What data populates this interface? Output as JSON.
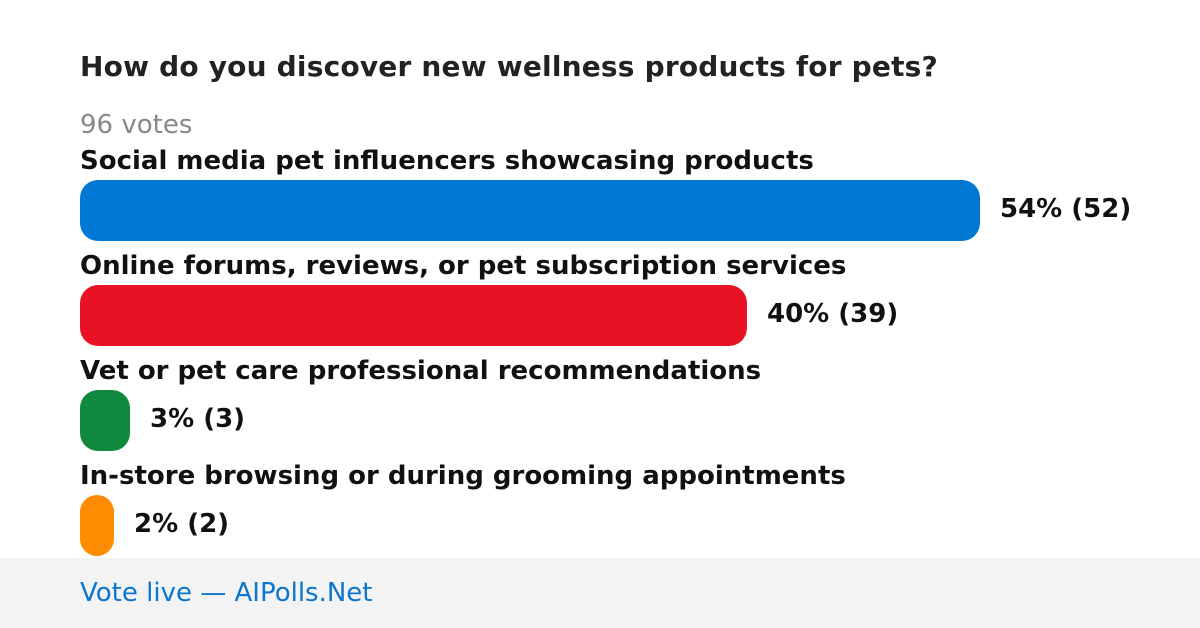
{
  "poll": {
    "title": "How do you discover new wellness products for pets?",
    "votes_label": "96 votes"
  },
  "chart_data": {
    "type": "bar",
    "orientation": "horizontal",
    "title": "How do you discover new wellness products for pets?",
    "total_votes": 96,
    "categories": [
      "Social media pet influencers showcasing products",
      "Online forums, reviews, or pet subscription services",
      "Vet or pet care professional recommendations",
      "In-store browsing or during grooming appointments"
    ],
    "percents": [
      54,
      40,
      3,
      2
    ],
    "values": [
      52,
      39,
      3,
      2
    ],
    "value_labels": [
      "54% (52)",
      "40% (39)",
      "3% (3)",
      "2% (2)"
    ],
    "colors": [
      "#0078d4",
      "#e81224",
      "#10893e",
      "#ff8c00"
    ],
    "xlim": [
      0,
      54
    ],
    "grid": false,
    "legend": "none"
  },
  "footer": {
    "link_text": "Vote live — AIPolls.Net"
  }
}
